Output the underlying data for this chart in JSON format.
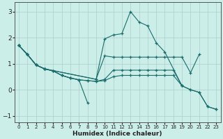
{
  "xlabel": "Humidex (Indice chaleur)",
  "background_color": "#cceee8",
  "grid_color": "#aacccc",
  "line_color": "#1a6b6b",
  "xlim": [
    -0.5,
    23.5
  ],
  "ylim": [
    -1.25,
    3.35
  ],
  "xticks": [
    0,
    1,
    2,
    3,
    4,
    5,
    6,
    7,
    8,
    9,
    10,
    11,
    12,
    13,
    14,
    15,
    16,
    17,
    18,
    19,
    20,
    21,
    22,
    23
  ],
  "yticks": [
    -1,
    0,
    1,
    2,
    3
  ],
  "lines": [
    {
      "x": [
        0,
        1,
        2,
        3,
        9,
        10,
        11,
        12,
        13,
        14,
        15,
        16,
        17,
        19,
        20,
        21,
        22,
        23
      ],
      "y": [
        1.7,
        1.35,
        0.95,
        0.8,
        0.4,
        1.95,
        2.1,
        2.15,
        3.0,
        2.6,
        2.45,
        1.8,
        1.45,
        0.15,
        0.0,
        -0.1,
        -0.65,
        -0.75
      ]
    },
    {
      "x": [
        0,
        1,
        2,
        3,
        9,
        10,
        11,
        12,
        13,
        14,
        15,
        16,
        17,
        18,
        19,
        20,
        21
      ],
      "y": [
        1.7,
        1.35,
        0.95,
        0.8,
        0.4,
        1.3,
        1.25,
        1.25,
        1.25,
        1.25,
        1.25,
        1.25,
        1.25,
        1.25,
        1.25,
        0.65,
        1.35
      ]
    },
    {
      "x": [
        0,
        1,
        2,
        3,
        4,
        5,
        6,
        7,
        8,
        9,
        10,
        11,
        12,
        13,
        14,
        15,
        16,
        17,
        18,
        19
      ],
      "y": [
        1.7,
        1.35,
        0.95,
        0.8,
        0.72,
        0.55,
        0.45,
        0.38,
        0.35,
        0.32,
        0.4,
        0.75,
        0.75,
        0.75,
        0.75,
        0.75,
        0.75,
        0.75,
        0.75,
        0.15
      ]
    },
    {
      "x": [
        0,
        1,
        2,
        3,
        4,
        5,
        6,
        7,
        8,
        9,
        10,
        11,
        12,
        13,
        14,
        15,
        16,
        17,
        18,
        19,
        20,
        21,
        22,
        23
      ],
      "y": [
        1.7,
        1.35,
        0.95,
        0.8,
        0.72,
        0.55,
        0.45,
        0.38,
        0.35,
        0.32,
        0.35,
        0.5,
        0.55,
        0.55,
        0.55,
        0.55,
        0.55,
        0.55,
        0.55,
        0.15,
        0.0,
        -0.1,
        -0.65,
        -0.75
      ]
    },
    {
      "x": [
        0,
        1,
        2,
        3,
        4,
        5,
        6,
        7,
        8
      ],
      "y": [
        1.7,
        1.35,
        0.95,
        0.8,
        0.72,
        0.55,
        0.45,
        0.38,
        -0.5
      ]
    }
  ]
}
